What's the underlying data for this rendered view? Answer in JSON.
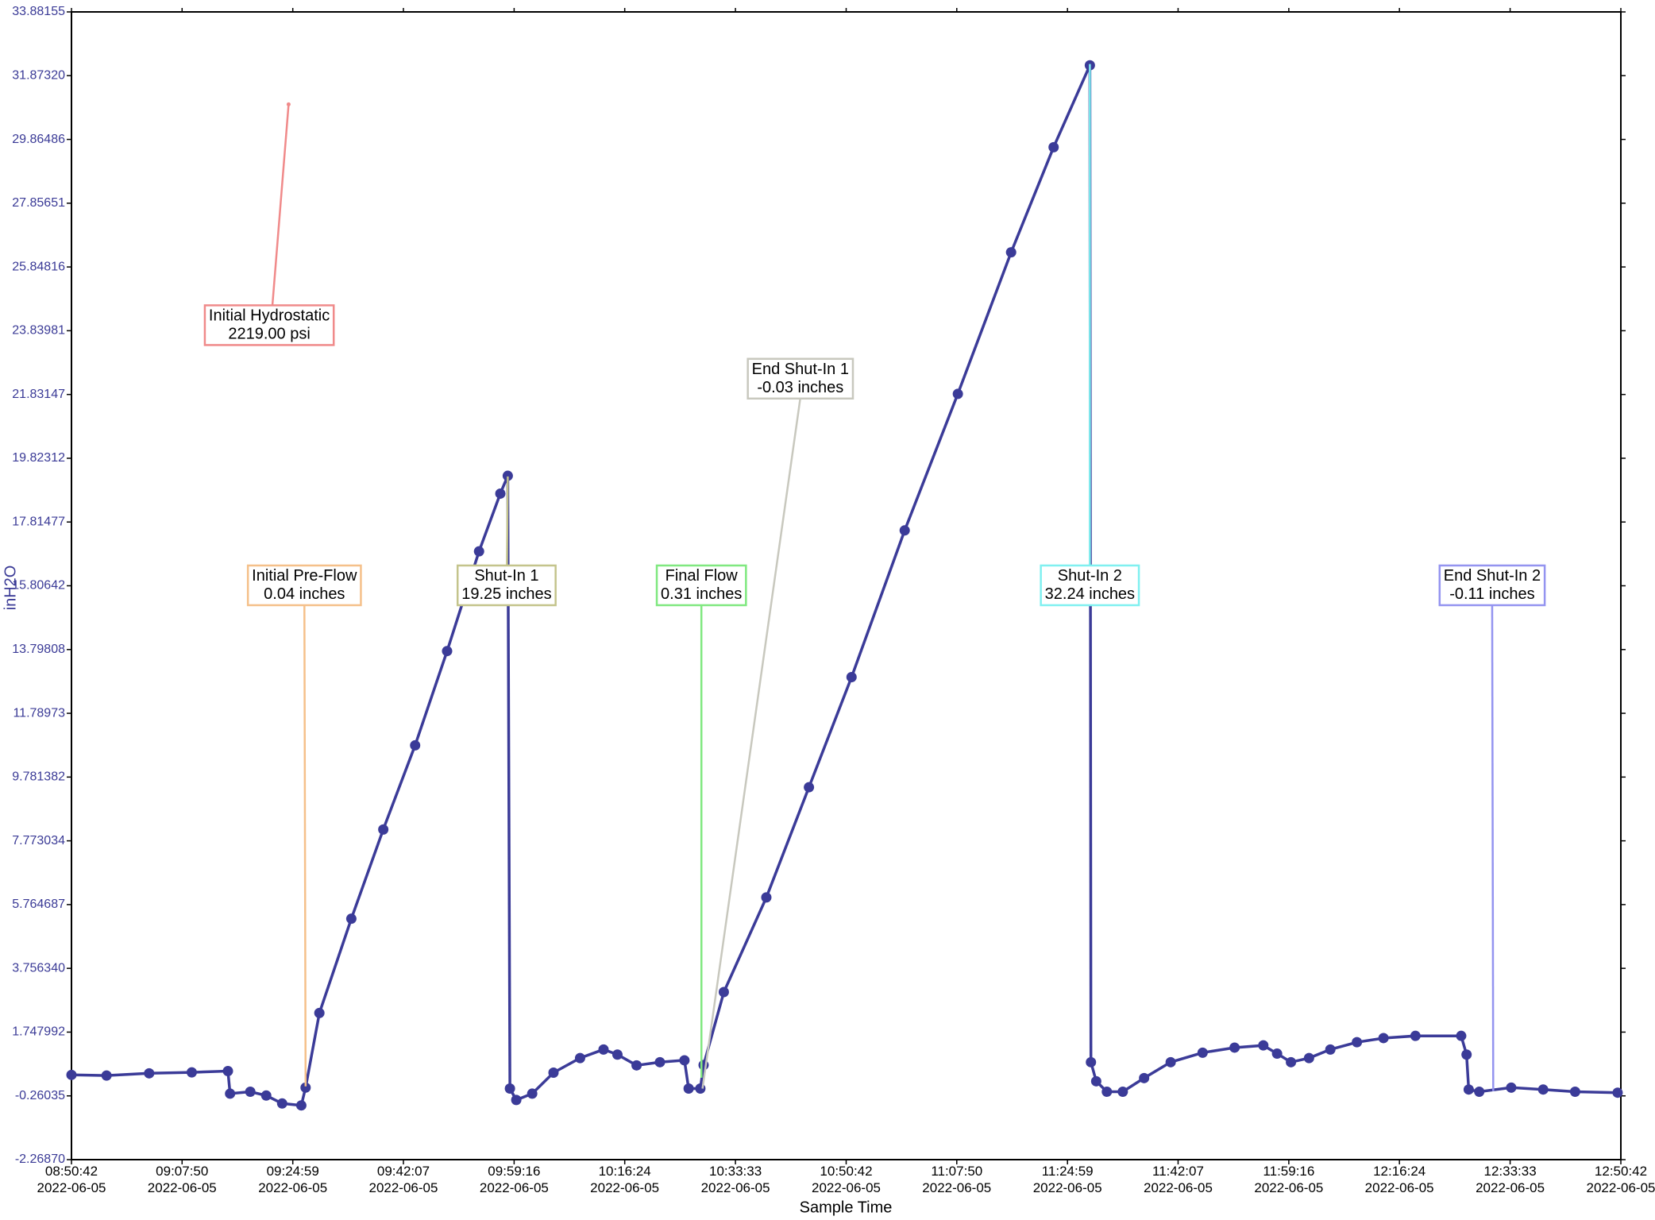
{
  "chart_data": {
    "type": "line",
    "x_label": "Sample Time",
    "y_label": "inH2O",
    "xlim": [
      "2022-06-05T08:50:42",
      "2022-06-05T12:50:42"
    ],
    "ylim": [
      -2.2687,
      33.88155
    ],
    "xticks": [
      {
        "value": "2022-06-05T08:50:42",
        "label": "08:50:42 2022-06-05"
      },
      {
        "value": "2022-06-05T09:07:50",
        "label": "09:07:50 2022-06-05"
      },
      {
        "value": "2022-06-05T09:24:59",
        "label": "09:24:59 2022-06-05"
      },
      {
        "value": "2022-06-05T09:42:07",
        "label": "09:42:07 2022-06-05"
      },
      {
        "value": "2022-06-05T09:59:16",
        "label": "09:59:16 2022-06-05"
      },
      {
        "value": "2022-06-05T10:16:24",
        "label": "10:16:24 2022-06-05"
      },
      {
        "value": "2022-06-05T10:33:33",
        "label": "10:33:33 2022-06-05"
      },
      {
        "value": "2022-06-05T10:50:42",
        "label": "10:50:42 2022-06-05"
      },
      {
        "value": "2022-06-05T11:07:50",
        "label": "11:07:50 2022-06-05"
      },
      {
        "value": "2022-06-05T11:24:59",
        "label": "11:24:59 2022-06-05"
      },
      {
        "value": "2022-06-05T11:42:07",
        "label": "11:42:07 2022-06-05"
      },
      {
        "value": "2022-06-05T11:59:16",
        "label": "11:59:16 2022-06-05"
      },
      {
        "value": "2022-06-05T12:16:24",
        "label": "12:16:24 2022-06-05"
      },
      {
        "value": "2022-06-05T12:33:33",
        "label": "12:33:33 2022-06-05"
      },
      {
        "value": "2022-06-05T12:50:42",
        "label": "12:50:42 2022-06-05"
      }
    ],
    "yticks": [
      {
        "value": -2.2687,
        "label": "-2.26870"
      },
      -0.26035,
      1.747992,
      {
        "value": 3.75634,
        "label": "3.756340"
      },
      5.764687,
      7.773034,
      9.781382,
      11.78973,
      13.79808,
      15.80642,
      17.81477,
      19.82312,
      21.83147,
      23.83981,
      25.84816,
      27.85651,
      29.86486,
      {
        "value": 31.8732,
        "label": "31.87320"
      },
      33.88155
    ],
    "series": [
      {
        "color": "#3b3b98",
        "x": [
          "2022-06-05T08:50:42",
          "2022-06-05T08:56:08",
          "2022-06-05T09:02:44",
          "2022-06-05T09:09:20",
          "2022-06-05T09:14:56",
          "2022-06-05T09:15:16",
          "2022-06-05T09:18:24",
          "2022-06-05T09:20:52",
          "2022-06-05T09:23:20",
          "2022-06-05T09:26:18",
          "2022-06-05T09:26:58",
          "2022-06-05T09:29:06",
          "2022-06-05T09:34:03",
          "2022-06-05T09:39:00",
          "2022-06-05T09:43:56",
          "2022-06-05T09:48:53",
          "2022-06-05T09:53:50",
          "2022-06-05T09:57:08",
          "2022-06-05T09:58:17",
          "2022-06-05T09:58:37",
          "2022-06-05T09:59:36",
          "2022-06-05T10:02:04",
          "2022-06-05T10:05:22",
          "2022-06-05T10:09:29",
          "2022-06-05T10:13:07",
          "2022-06-05T10:15:16",
          "2022-06-05T10:18:14",
          "2022-06-05T10:21:51",
          "2022-06-05T10:25:39",
          "2022-06-05T10:26:18",
          "2022-06-05T10:28:07",
          "2022-06-05T10:28:37",
          "2022-06-05T10:31:45",
          "2022-06-05T10:38:20",
          "2022-06-05T10:44:56",
          "2022-06-05T10:51:32",
          "2022-06-05T10:59:46",
          "2022-06-05T11:08:00",
          "2022-06-05T11:16:15",
          "2022-06-05T11:22:50",
          "2022-06-05T11:28:27",
          "2022-06-05T11:28:37",
          "2022-06-05T11:29:26",
          "2022-06-05T11:31:05",
          "2022-06-05T11:33:33",
          "2022-06-05T11:36:51",
          "2022-06-05T11:40:58",
          "2022-06-05T11:45:55",
          "2022-06-05T11:50:52",
          "2022-06-05T11:55:19",
          "2022-06-05T11:57:27",
          "2022-06-05T11:59:36",
          "2022-06-05T12:02:24",
          "2022-06-05T12:05:42",
          "2022-06-05T12:09:49",
          "2022-06-05T12:13:56",
          "2022-06-05T12:18:53",
          "2022-06-05T12:25:58",
          "2022-06-05T12:26:48",
          "2022-06-05T12:27:08",
          "2022-06-05T12:28:46",
          "2022-06-05T12:33:43",
          "2022-06-05T12:38:40",
          "2022-06-05T12:43:37",
          "2022-06-05T12:50:12"
        ],
        "values": [
          0.4,
          0.38,
          0.45,
          0.48,
          0.52,
          -0.19,
          -0.13,
          -0.25,
          -0.5,
          -0.56,
          0.0,
          2.35,
          5.32,
          8.13,
          10.78,
          13.75,
          16.89,
          18.71,
          19.27,
          -0.03,
          -0.39,
          -0.19,
          0.47,
          0.93,
          1.2,
          1.04,
          0.7,
          0.8,
          0.86,
          -0.03,
          -0.03,
          0.71,
          3.01,
          5.99,
          9.46,
          12.93,
          17.55,
          21.85,
          26.31,
          29.62,
          32.2,
          0.8,
          0.2,
          -0.13,
          -0.13,
          0.3,
          0.8,
          1.1,
          1.26,
          1.33,
          1.07,
          0.8,
          0.93,
          1.2,
          1.43,
          1.56,
          1.63,
          1.63,
          1.04,
          -0.06,
          -0.13,
          0.0,
          -0.06,
          -0.13,
          -0.16
        ]
      }
    ],
    "annotations": [
      {
        "text": [
          "Initial Hydrostatic",
          "2219.00 psi"
        ],
        "color": "#f08a8a",
        "x": "2022-06-05T09:24:20",
        "y": 30.97
      },
      {
        "text": [
          "Initial Pre-Flow",
          "0.04 inches"
        ],
        "color": "#f5c08a",
        "x": "2022-06-05T09:26:58",
        "y": 0.04
      },
      {
        "text": [
          "Shut-In 1",
          "19.25 inches"
        ],
        "color": "#c4c48c",
        "x": "2022-06-05T09:58:17",
        "y": 19.25
      },
      {
        "text": [
          "Final Flow",
          "0.31 inches"
        ],
        "color": "#80e880",
        "x": "2022-06-05T10:28:17",
        "y": 0.31
      },
      {
        "text": [
          "End Shut-In 1",
          "-0.03 inches"
        ],
        "color": "#c8c8be",
        "x": "2022-06-05T10:28:27",
        "y": -0.03
      },
      {
        "text": [
          "Shut-In 2",
          "32.24 inches"
        ],
        "color": "#80f0f0",
        "x": "2022-06-05T11:28:27",
        "y": 32.24
      },
      {
        "text": [
          "End Shut-In 2",
          "-0.11 inches"
        ],
        "color": "#9494f0",
        "x": "2022-06-05T12:30:56",
        "y": -0.11
      }
    ]
  }
}
